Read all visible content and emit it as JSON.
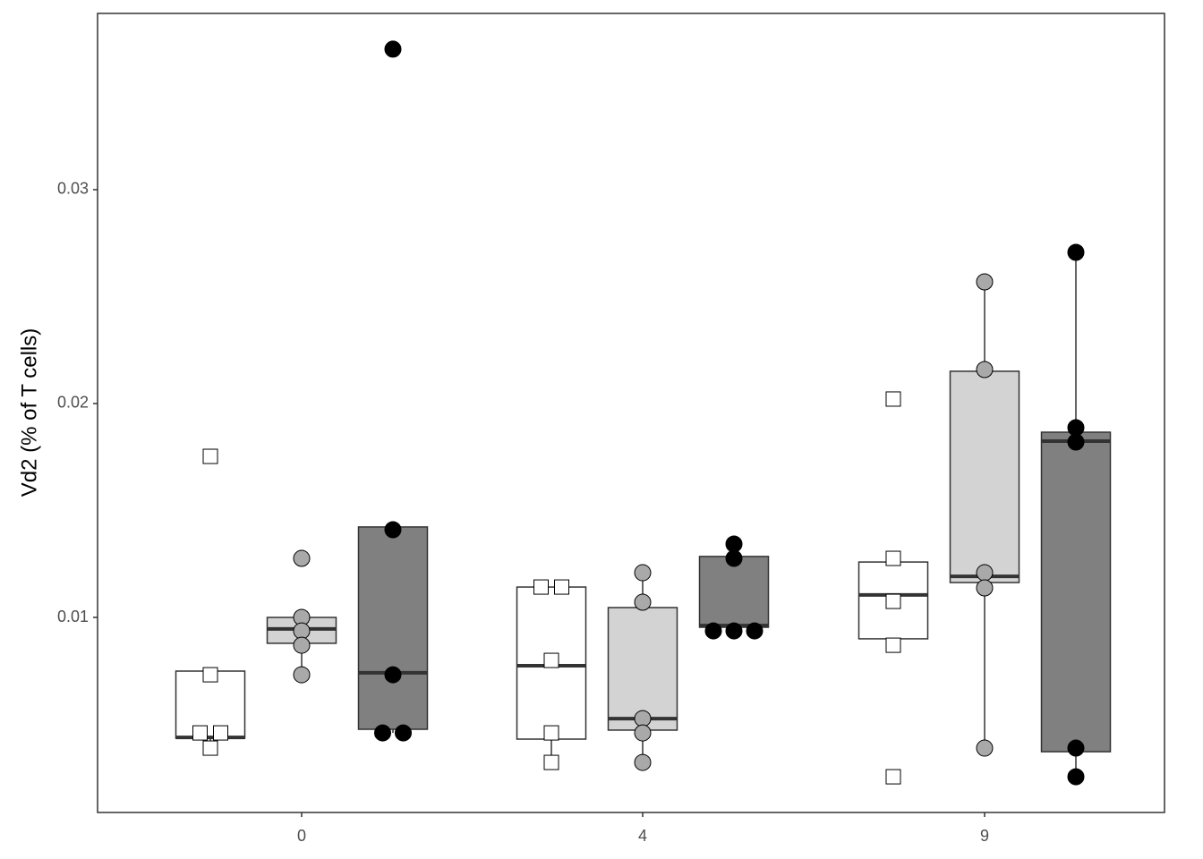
{
  "chart_data": {
    "type": "box",
    "ylabel": "Vd2 (% of T cells)",
    "categories": [
      "0",
      "4",
      "9"
    ],
    "ylim": [
      0.00088,
      0.03824
    ],
    "yticks": [
      0.01,
      0.02,
      0.03
    ],
    "grid": false,
    "series": [
      {
        "color": "#ffffff",
        "point_color": "#ffffff",
        "shape": "square",
        "values": [
          {
            "q1": 0.00435,
            "median": 0.00439,
            "q3": 0.00749,
            "whisker_low": 0.00389,
            "whisker_high": 0.00749,
            "points": [
              0.01753,
              0.00732,
              0.0046,
              0.0046,
              0.00389
            ]
          },
          {
            "q1": 0.00431,
            "median": 0.00774,
            "q3": 0.01142,
            "whisker_low": 0.00322,
            "whisker_high": 0.01142,
            "points": [
              0.01142,
              0.01142,
              0.00799,
              0.0046,
              0.00322
            ]
          },
          {
            "q1": 0.009,
            "median": 0.01105,
            "q3": 0.01259,
            "whisker_low": 0.009,
            "whisker_high": 0.01259,
            "points": [
              0.02021,
              0.01276,
              0.01075,
              0.0087,
              0.00255
            ]
          }
        ]
      },
      {
        "color": "#d3d3d3",
        "point_color": "#a9a9a9",
        "shape": "circle",
        "values": [
          {
            "q1": 0.00879,
            "median": 0.00946,
            "q3": 0.01,
            "whisker_low": 0.00732,
            "whisker_high": 0.01,
            "points": [
              0.01276,
              0.01,
              0.00937,
              0.0087,
              0.00732
            ]
          },
          {
            "q1": 0.00473,
            "median": 0.00527,
            "q3": 0.01046,
            "whisker_low": 0.00322,
            "whisker_high": 0.01209,
            "points": [
              0.01209,
              0.01071,
              0.00527,
              0.0046,
              0.00322
            ]
          },
          {
            "q1": 0.01163,
            "median": 0.01192,
            "q3": 0.02151,
            "whisker_low": 0.00389,
            "whisker_high": 0.02569,
            "points": [
              0.02569,
              0.02159,
              0.01209,
              0.01138,
              0.00389
            ]
          }
        ]
      },
      {
        "color": "#808080",
        "point_color": "#000000",
        "shape": "circle",
        "values": [
          {
            "q1": 0.00477,
            "median": 0.00741,
            "q3": 0.01423,
            "whisker_low": 0.0046,
            "whisker_high": 0.01423,
            "points": [
              0.03657,
              0.0141,
              0.00732,
              0.0046,
              0.0046
            ]
          },
          {
            "q1": 0.00954,
            "median": 0.00962,
            "q3": 0.01285,
            "whisker_low": 0.00954,
            "whisker_high": 0.01343,
            "points": [
              0.01343,
              0.01276,
              0.00937,
              0.00937,
              0.00937
            ]
          },
          {
            "q1": 0.00372,
            "median": 0.01824,
            "q3": 0.01866,
            "whisker_low": 0.00255,
            "whisker_high": 0.02707,
            "points": [
              0.02707,
              0.01887,
              0.0182,
              0.00389,
              0.00255
            ]
          }
        ]
      }
    ]
  }
}
